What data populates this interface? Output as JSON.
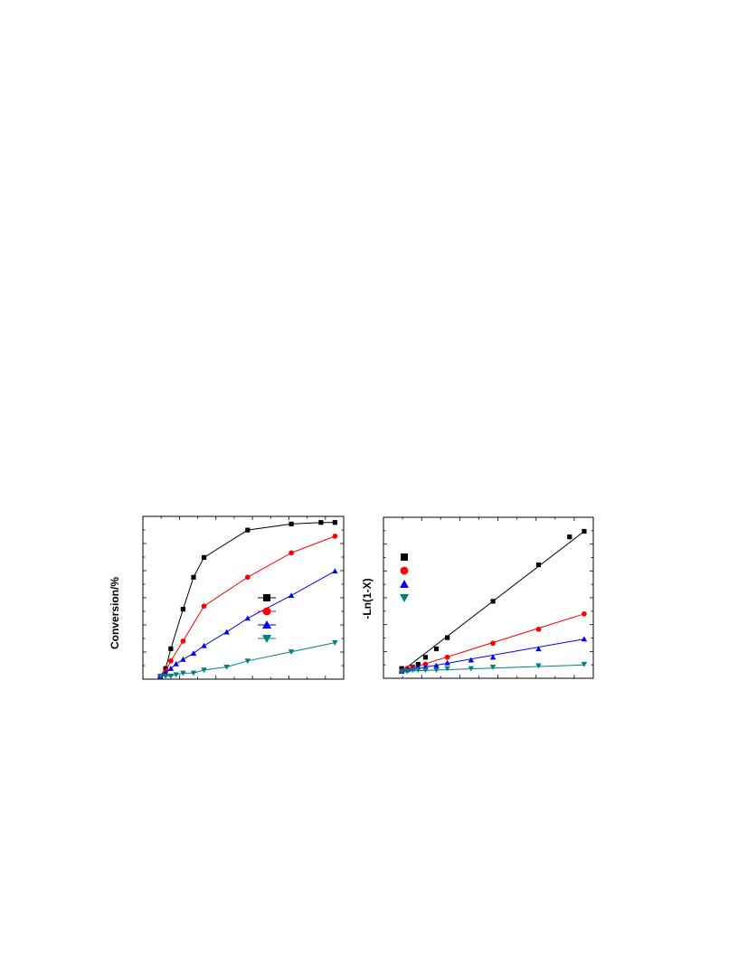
{
  "page": {
    "background": "#ffffff"
  },
  "panels": [
    {
      "id": "left",
      "ylabel": "Conversion/%",
      "chart_data": {
        "type": "line",
        "title": "",
        "xlabel": "",
        "ylabel": "Conversion/%",
        "xlim": [
          -0.1,
          1.05
        ],
        "ylim": [
          -0.02,
          1.05
        ],
        "grid": false,
        "legend": {
          "placement": "center-right",
          "entries": [
            "",
            "",
            "",
            ""
          ]
        },
        "series": [
          {
            "color": "#000000",
            "marker": "square",
            "connect": true,
            "x": [
              0,
              0.03,
              0.06,
              0.13,
              0.19,
              0.25,
              0.5,
              0.75,
              0.92,
              1.0
            ],
            "y": [
              0,
              0.05,
              0.18,
              0.44,
              0.65,
              0.78,
              0.96,
              1.0,
              1.01,
              1.01
            ]
          },
          {
            "color": "#ff0000",
            "marker": "circle",
            "connect": true,
            "x": [
              0,
              0.03,
              0.06,
              0.13,
              0.25,
              0.5,
              0.75,
              1.0
            ],
            "y": [
              0,
              0.03,
              0.1,
              0.23,
              0.46,
              0.65,
              0.81,
              0.92
            ]
          },
          {
            "color": "#0000ff",
            "marker": "triangle-up",
            "connect": true,
            "x": [
              0,
              0.03,
              0.06,
              0.09,
              0.13,
              0.19,
              0.25,
              0.38,
              0.5,
              0.75,
              1.0
            ],
            "y": [
              0,
              0.02,
              0.05,
              0.08,
              0.11,
              0.15,
              0.2,
              0.29,
              0.38,
              0.53,
              0.69
            ]
          },
          {
            "color": "#008080",
            "marker": "triangle-down",
            "connect": true,
            "x": [
              0,
              0.03,
              0.06,
              0.09,
              0.13,
              0.19,
              0.25,
              0.38,
              0.5,
              0.75,
              1.0
            ],
            "y": [
              0,
              0.0,
              0.0,
              0.01,
              0.02,
              0.02,
              0.04,
              0.06,
              0.1,
              0.16,
              0.22
            ]
          }
        ]
      }
    },
    {
      "id": "right",
      "ylabel": "-Ln(1-X)",
      "chart_data": {
        "type": "scatter",
        "title": "",
        "xlabel": "",
        "ylabel": "-Ln(1-X)",
        "xlim": [
          -0.1,
          1.05
        ],
        "ylim": [
          -0.05,
          1.1
        ],
        "grid": false,
        "legend": {
          "placement": "top-left",
          "entries": [
            "",
            "",
            "",
            ""
          ]
        },
        "series": [
          {
            "color": "#000000",
            "marker": "square",
            "fit": [
              0.0,
              1.0
            ],
            "x": [
              0,
              0.06,
              0.09,
              0.13,
              0.19,
              0.25,
              0.5,
              0.75,
              0.92,
              1.0
            ],
            "y": [
              0.02,
              0.03,
              0.05,
              0.1,
              0.16,
              0.24,
              0.5,
              0.76,
              0.96,
              1.0
            ]
          },
          {
            "color": "#ff0000",
            "marker": "circle",
            "fit": [
              0.0,
              0.41
            ],
            "x": [
              0,
              0.03,
              0.06,
              0.13,
              0.25,
              0.5,
              0.75,
              1.0
            ],
            "y": [
              0,
              0.02,
              0.03,
              0.05,
              0.1,
              0.2,
              0.3,
              0.41
            ]
          },
          {
            "color": "#0000ff",
            "marker": "triangle-up",
            "fit": [
              0.0,
              0.23
            ],
            "x": [
              0,
              0.03,
              0.06,
              0.09,
              0.13,
              0.19,
              0.25,
              0.38,
              0.5,
              0.75,
              1.0
            ],
            "y": [
              0,
              0.01,
              0.02,
              0.03,
              0.03,
              0.04,
              0.06,
              0.08,
              0.1,
              0.16,
              0.23
            ]
          },
          {
            "color": "#008080",
            "marker": "triangle-down",
            "fit": [
              0.0,
              0.045
            ],
            "x": [
              0,
              0.03,
              0.06,
              0.09,
              0.13,
              0.19,
              0.25,
              0.38,
              0.5,
              0.75,
              1.0
            ],
            "y": [
              0,
              0.0,
              0.01,
              0.01,
              0.01,
              0.01,
              0.02,
              0.02,
              0.03,
              0.04,
              0.05
            ]
          }
        ]
      }
    }
  ]
}
